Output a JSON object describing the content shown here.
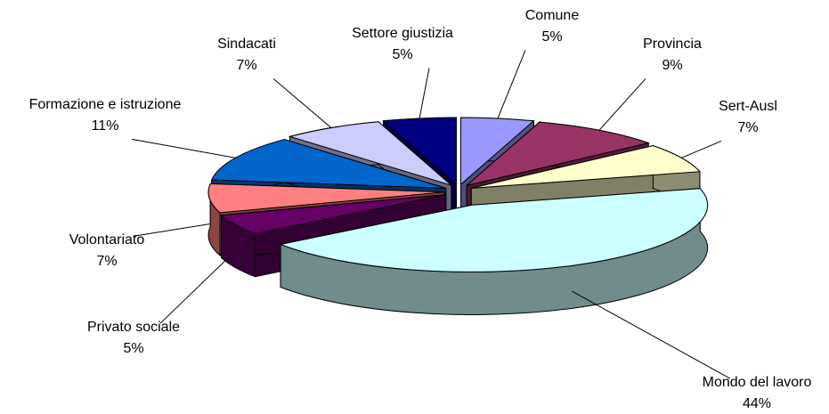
{
  "chart_data": {
    "type": "pie",
    "categories": [
      "Comune",
      "Provincia",
      "Sert-Ausl",
      "Mondo del lavoro",
      "Privato sociale",
      "Volontariato",
      "Formazione e istruzione",
      "Sindacati",
      "Settore giustizia"
    ],
    "values": [
      5,
      9,
      7,
      44,
      5,
      7,
      11,
      7,
      5
    ],
    "value_labels": [
      "5%",
      "9%",
      "7%",
      "44%",
      "5%",
      "7%",
      "11%",
      "7%",
      "5%"
    ],
    "colors": [
      "#9999ff",
      "#993366",
      "#ffffcc",
      "#ccffff",
      "#660066",
      "#ff8080",
      "#0066cc",
      "#ccccff",
      "#000080"
    ]
  }
}
